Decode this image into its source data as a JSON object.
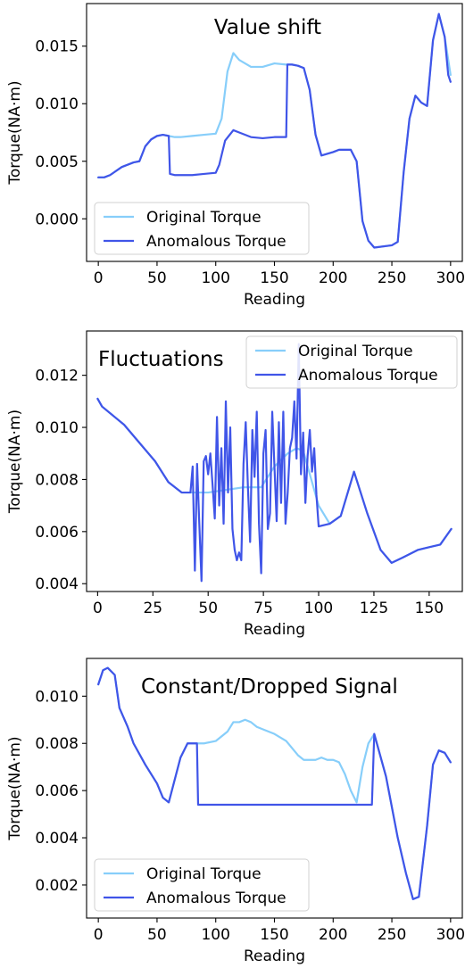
{
  "chart_data": [
    {
      "type": "line",
      "title": "Value shift",
      "xlabel": "Reading",
      "ylabel": "Torque(NA·m)",
      "xlim": [
        -10,
        310
      ],
      "ylim": [
        -0.0037,
        0.0187
      ],
      "xticks": [
        0,
        50,
        100,
        150,
        200,
        250,
        300
      ],
      "yticks": [
        0.0,
        0.005,
        0.01,
        0.015
      ],
      "ytick_labels": [
        "0.000",
        "0.005",
        "0.010",
        "0.015"
      ],
      "grid": false,
      "legend_position": "lower-left",
      "series": [
        {
          "name": "Original Torque",
          "color": "#87CEFA",
          "x": [
            0,
            5,
            10,
            20,
            30,
            35,
            40,
            45,
            50,
            55,
            60,
            65,
            70,
            80,
            90,
            100,
            105,
            110,
            115,
            120,
            125,
            130,
            140,
            150,
            160,
            165,
            170,
            175,
            180,
            185,
            190,
            200,
            205,
            210,
            215,
            220,
            225,
            230,
            235,
            250,
            255,
            260,
            265,
            270,
            275,
            280,
            285,
            290,
            295,
            300
          ],
          "y": [
            0.0036,
            0.0036,
            0.0038,
            0.0045,
            0.0049,
            0.005,
            0.0063,
            0.0069,
            0.0072,
            0.0073,
            0.0072,
            0.0071,
            0.0071,
            0.0072,
            0.0073,
            0.0074,
            0.0087,
            0.0128,
            0.0144,
            0.0138,
            0.0135,
            0.0132,
            0.0132,
            0.0135,
            0.0134,
            0.0134,
            0.0133,
            0.0131,
            0.0112,
            0.0073,
            0.0055,
            0.0058,
            0.006,
            0.006,
            0.006,
            0.005,
            -0.0002,
            -0.0019,
            -0.0025,
            -0.0023,
            -0.002,
            0.004,
            0.0087,
            0.0107,
            0.0101,
            0.0098,
            0.0155,
            0.0178,
            0.0158,
            0.0125
          ]
        },
        {
          "name": "Anomalous Torque",
          "color": "#4055E8",
          "x": [
            0,
            5,
            10,
            20,
            30,
            35,
            40,
            45,
            50,
            55,
            60,
            61,
            65,
            70,
            80,
            90,
            100,
            103,
            108,
            115,
            120,
            130,
            140,
            150,
            160,
            161,
            165,
            170,
            175,
            180,
            185,
            190,
            200,
            205,
            210,
            215,
            220,
            225,
            230,
            235,
            250,
            255,
            260,
            265,
            270,
            275,
            280,
            285,
            290,
            295,
            298,
            300
          ],
          "y": [
            0.0036,
            0.0036,
            0.0038,
            0.0045,
            0.0049,
            0.005,
            0.0063,
            0.0069,
            0.0072,
            0.0073,
            0.0072,
            0.0039,
            0.0038,
            0.0038,
            0.0038,
            0.0039,
            0.004,
            0.0047,
            0.0068,
            0.0077,
            0.0075,
            0.0071,
            0.007,
            0.0071,
            0.0071,
            0.0134,
            0.0134,
            0.0133,
            0.0131,
            0.0112,
            0.0073,
            0.0055,
            0.0058,
            0.006,
            0.006,
            0.006,
            0.005,
            -0.0002,
            -0.0019,
            -0.0025,
            -0.0023,
            -0.002,
            0.004,
            0.0087,
            0.0107,
            0.0101,
            0.0098,
            0.0155,
            0.0178,
            0.0158,
            0.0125,
            0.0119
          ]
        }
      ]
    },
    {
      "type": "line",
      "title": "Fluctuations",
      "xlabel": "Reading",
      "ylabel": "Torque(NA·m)",
      "xlim": [
        -5,
        165
      ],
      "ylim": [
        0.0037,
        0.0137
      ],
      "xticks": [
        0,
        25,
        50,
        75,
        100,
        125,
        150
      ],
      "yticks": [
        0.004,
        0.006,
        0.008,
        0.01,
        0.012
      ],
      "ytick_labels": [
        "0.004",
        "0.006",
        "0.008",
        "0.010",
        "0.012"
      ],
      "grid": false,
      "legend_position": "top-right",
      "series": [
        {
          "name": "Original Torque",
          "color": "#87CEFA",
          "x": [
            0,
            2,
            12,
            20,
            26,
            32,
            38,
            43,
            50,
            58,
            66,
            70,
            74,
            80,
            86,
            90,
            93,
            96,
            100,
            105,
            110,
            116,
            122,
            128,
            133,
            138,
            145,
            150,
            155,
            160
          ],
          "y": [
            0.0111,
            0.0108,
            0.0101,
            0.0093,
            0.0087,
            0.0079,
            0.0075,
            0.0075,
            0.0075,
            0.0076,
            0.0077,
            0.0077,
            0.0077,
            0.0085,
            0.009,
            0.0092,
            0.0091,
            0.0082,
            0.007,
            0.0063,
            0.0066,
            0.0083,
            0.0067,
            0.0053,
            0.0048,
            0.005,
            0.0053,
            0.0054,
            0.0055,
            0.0061
          ]
        },
        {
          "name": "Anomalous Torque",
          "color": "#4055E8",
          "x": [
            0,
            2,
            12,
            20,
            26,
            32,
            38,
            42,
            43,
            44,
            45,
            46,
            47,
            48,
            49,
            50,
            51,
            52,
            53,
            54,
            55,
            56,
            57,
            58,
            59,
            60,
            61,
            62,
            63,
            64,
            65,
            66,
            67,
            68,
            69,
            70,
            71,
            72,
            73,
            74,
            75,
            76,
            77,
            78,
            79,
            80,
            81,
            82,
            83,
            84,
            85,
            86,
            87,
            88,
            89,
            90,
            91,
            92,
            93,
            94,
            95,
            96,
            97,
            98,
            99,
            100,
            105,
            110,
            116,
            122,
            128,
            133,
            138,
            145,
            150,
            155,
            160
          ],
          "y": [
            0.0111,
            0.0108,
            0.0101,
            0.0093,
            0.0087,
            0.0079,
            0.0075,
            0.0075,
            0.0085,
            0.0045,
            0.0086,
            0.0063,
            0.0041,
            0.0087,
            0.0089,
            0.0082,
            0.009,
            0.0078,
            0.0065,
            0.0104,
            0.007,
            0.0092,
            0.0063,
            0.011,
            0.0075,
            0.01,
            0.0061,
            0.0053,
            0.0049,
            0.0052,
            0.0049,
            0.0086,
            0.0102,
            0.0077,
            0.0056,
            0.0099,
            0.0081,
            0.0106,
            0.0063,
            0.0044,
            0.009,
            0.0099,
            0.0061,
            0.0067,
            0.0106,
            0.0085,
            0.0064,
            0.0102,
            0.0071,
            0.0106,
            0.0063,
            0.0075,
            0.0092,
            0.0096,
            0.011,
            0.0088,
            0.0132,
            0.0082,
            0.0098,
            0.0071,
            0.0089,
            0.0099,
            0.0083,
            0.0092,
            0.0074,
            0.0062,
            0.0063,
            0.0066,
            0.0083,
            0.0067,
            0.0053,
            0.0048,
            0.005,
            0.0053,
            0.0054,
            0.0055,
            0.0061
          ]
        }
      ]
    },
    {
      "type": "line",
      "title": "Constant/Dropped Signal",
      "xlabel": "Reading",
      "ylabel": "Torque(NA·m)",
      "xlim": [
        -10,
        310
      ],
      "ylim": [
        0.0006,
        0.0116
      ],
      "xticks": [
        0,
        50,
        100,
        150,
        200,
        250,
        300
      ],
      "yticks": [
        0.002,
        0.004,
        0.006,
        0.008,
        0.01
      ],
      "ytick_labels": [
        "0.002",
        "0.004",
        "0.006",
        "0.008",
        "0.010"
      ],
      "grid": false,
      "legend_position": "lower-left",
      "series": [
        {
          "name": "Original Torque",
          "color": "#87CEFA",
          "x": [
            0,
            4,
            8,
            14,
            18,
            25,
            30,
            40,
            50,
            55,
            60,
            70,
            76,
            80,
            84,
            90,
            100,
            110,
            115,
            120,
            125,
            130,
            135,
            140,
            150,
            160,
            170,
            175,
            180,
            185,
            190,
            195,
            200,
            205,
            210,
            215,
            220,
            225,
            230,
            235,
            245,
            255,
            262,
            268,
            273,
            280,
            285,
            290,
            295,
            300
          ],
          "y": [
            0.0105,
            0.0111,
            0.0112,
            0.0109,
            0.0095,
            0.0087,
            0.008,
            0.0071,
            0.0063,
            0.0057,
            0.0055,
            0.0074,
            0.008,
            0.008,
            0.008,
            0.008,
            0.0081,
            0.0085,
            0.0089,
            0.0089,
            0.009,
            0.0089,
            0.0087,
            0.0086,
            0.0084,
            0.0081,
            0.0075,
            0.0073,
            0.0073,
            0.0073,
            0.0074,
            0.0073,
            0.0073,
            0.0072,
            0.0067,
            0.006,
            0.0055,
            0.007,
            0.008,
            0.0084,
            0.0066,
            0.004,
            0.0025,
            0.0014,
            0.0015,
            0.0045,
            0.0071,
            0.0077,
            0.0076,
            0.0072
          ]
        },
        {
          "name": "Anomalous Torque",
          "color": "#4055E8",
          "x": [
            0,
            4,
            8,
            14,
            18,
            25,
            30,
            40,
            50,
            55,
            60,
            70,
            76,
            80,
            84,
            85,
            233,
            235,
            245,
            255,
            262,
            268,
            273,
            280,
            285,
            290,
            295,
            300
          ],
          "y": [
            0.0105,
            0.0111,
            0.0112,
            0.0109,
            0.0095,
            0.0087,
            0.008,
            0.0071,
            0.0063,
            0.0057,
            0.0055,
            0.0074,
            0.008,
            0.008,
            0.008,
            0.0054,
            0.0054,
            0.0084,
            0.0066,
            0.004,
            0.0025,
            0.0014,
            0.0015,
            0.0045,
            0.0071,
            0.0077,
            0.0076,
            0.0072
          ]
        }
      ]
    }
  ]
}
